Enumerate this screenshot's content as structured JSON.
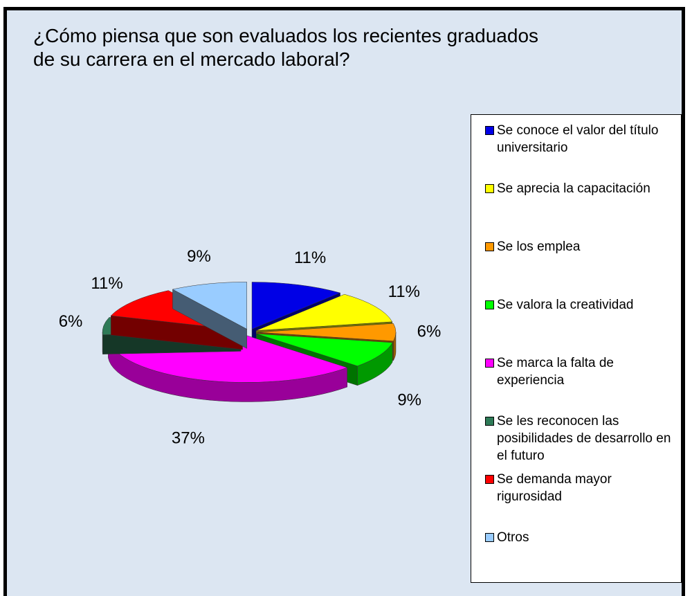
{
  "chart_data": {
    "type": "pie3d",
    "title": "¿Cómo piensa que son evaluados los recientes graduados de su carrera en el mercado laboral?",
    "categories": [
      "Se conoce el valor del título universitario",
      "Se aprecia la capacitación",
      "Se los emplea",
      "Se valora la creatividad",
      "Se marca la falta de experiencia",
      "Se les reconocen las posibilidades de desarrollo en el futuro",
      "Se demanda mayor rigurosidad",
      "Otros"
    ],
    "values": [
      11,
      11,
      6,
      9,
      37,
      6,
      11,
      9
    ],
    "value_labels": [
      "11%",
      "11%",
      "6%",
      "9%",
      "37%",
      "6%",
      "11%",
      "9%"
    ],
    "colors": [
      "#0000e6",
      "#ffff00",
      "#ff9900",
      "#00ff00",
      "#ff00ff",
      "#2e7a57",
      "#ff0000",
      "#99ccff"
    ],
    "legend": "right"
  }
}
